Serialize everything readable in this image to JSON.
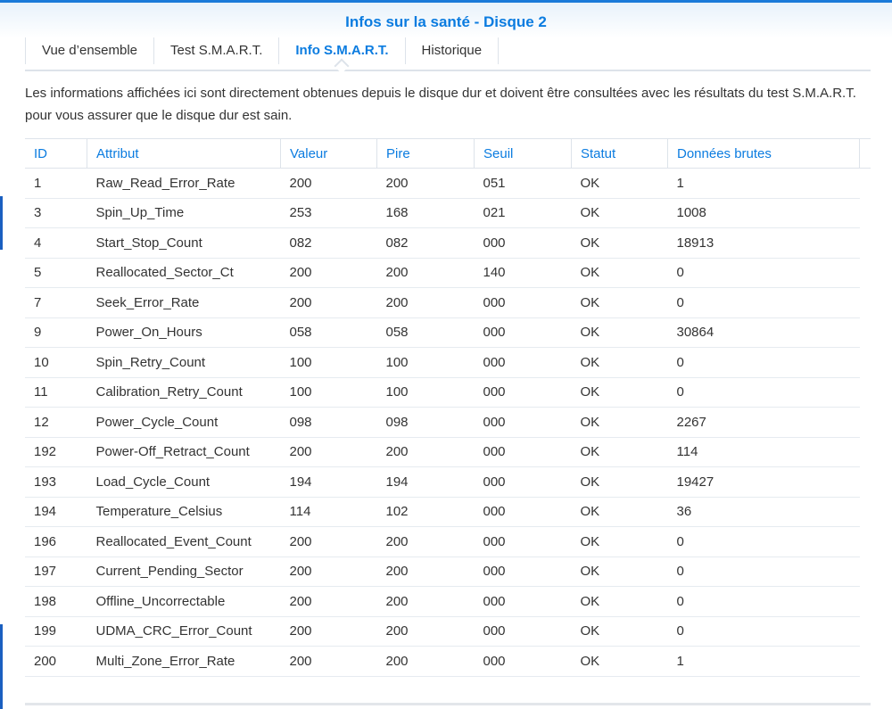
{
  "title": "Infos sur la santé - Disque 2",
  "tabs": [
    {
      "label": "Vue d’ensemble",
      "active": false
    },
    {
      "label": "Test S.M.A.R.T.",
      "active": false
    },
    {
      "label": "Info S.M.A.R.T.",
      "active": true
    },
    {
      "label": "Historique",
      "active": false
    }
  ],
  "description": "Les informations affichées ici sont directement obtenues depuis le disque dur et doivent être consultées avec les résultats du test S.M.A.R.T. pour vous assurer que le disque dur est sain.",
  "colors": {
    "accent": "#0b7ce0",
    "border": "#dde3ea"
  },
  "table": {
    "columns": [
      "ID",
      "Attribut",
      "Valeur",
      "Pire",
      "Seuil",
      "Statut",
      "Données brutes"
    ],
    "rows": [
      [
        "1",
        "Raw_Read_Error_Rate",
        "200",
        "200",
        "051",
        "OK",
        "1"
      ],
      [
        "3",
        "Spin_Up_Time",
        "253",
        "168",
        "021",
        "OK",
        "1008"
      ],
      [
        "4",
        "Start_Stop_Count",
        "082",
        "082",
        "000",
        "OK",
        "18913"
      ],
      [
        "5",
        "Reallocated_Sector_Ct",
        "200",
        "200",
        "140",
        "OK",
        "0"
      ],
      [
        "7",
        "Seek_Error_Rate",
        "200",
        "200",
        "000",
        "OK",
        "0"
      ],
      [
        "9",
        "Power_On_Hours",
        "058",
        "058",
        "000",
        "OK",
        "30864"
      ],
      [
        "10",
        "Spin_Retry_Count",
        "100",
        "100",
        "000",
        "OK",
        "0"
      ],
      [
        "11",
        "Calibration_Retry_Count",
        "100",
        "100",
        "000",
        "OK",
        "0"
      ],
      [
        "12",
        "Power_Cycle_Count",
        "098",
        "098",
        "000",
        "OK",
        "2267"
      ],
      [
        "192",
        "Power-Off_Retract_Count",
        "200",
        "200",
        "000",
        "OK",
        "114"
      ],
      [
        "193",
        "Load_Cycle_Count",
        "194",
        "194",
        "000",
        "OK",
        "19427"
      ],
      [
        "194",
        "Temperature_Celsius",
        "114",
        "102",
        "000",
        "OK",
        "36"
      ],
      [
        "196",
        "Reallocated_Event_Count",
        "200",
        "200",
        "000",
        "OK",
        "0"
      ],
      [
        "197",
        "Current_Pending_Sector",
        "200",
        "200",
        "000",
        "OK",
        "0"
      ],
      [
        "198",
        "Offline_Uncorrectable",
        "200",
        "200",
        "000",
        "OK",
        "0"
      ],
      [
        "199",
        "UDMA_CRC_Error_Count",
        "200",
        "200",
        "000",
        "OK",
        "0"
      ],
      [
        "200",
        "Multi_Zone_Error_Rate",
        "200",
        "200",
        "000",
        "OK",
        "1"
      ]
    ]
  }
}
